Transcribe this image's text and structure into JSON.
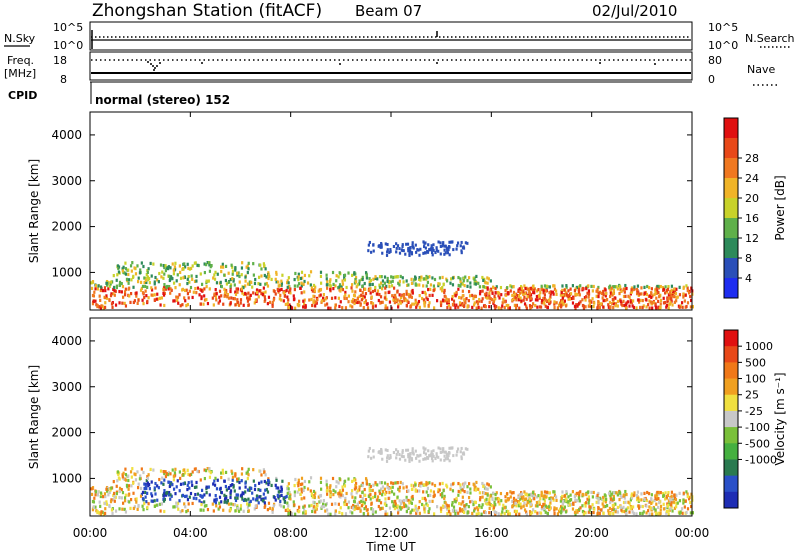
{
  "header": {
    "station": "Zhongshan Station (fitACF)",
    "beam": "Beam 07",
    "date": "02/Jul/2010"
  },
  "params": {
    "nsky_label": "N.Sky",
    "nsearch_label": "N.Search",
    "count_ticks": [
      "10^5",
      "10^0"
    ],
    "freq_label": "Freq.",
    "freq_unit": "[MHz]",
    "freq_ticks": [
      "18",
      "8"
    ],
    "nave_label": "Nave",
    "nave_ticks": [
      "80",
      "0"
    ],
    "cpid_label": "CPID",
    "cpid_text": "normal (stereo) 152"
  },
  "chart_data": [
    {
      "type": "heatmap",
      "name": "power-panel",
      "ylabel": "Slant Range [km]",
      "ylim": [
        180,
        4500
      ],
      "y_ticks": [
        1000,
        2000,
        3000,
        4000
      ],
      "xlim": [
        0,
        24
      ],
      "colorbar": {
        "label": "Power [dB]",
        "colors": [
          "#1e2df0",
          "#2a4fb8",
          "#2d8a5a",
          "#5fb04a",
          "#c8d22a",
          "#f0b428",
          "#f07820",
          "#e84818",
          "#e01010"
        ],
        "ticks": [
          "4",
          "8",
          "12",
          "16",
          "20",
          "24",
          "28"
        ]
      }
    },
    {
      "type": "heatmap",
      "name": "velocity-panel",
      "ylabel": "Slant Range [km]",
      "ylim": [
        180,
        4500
      ],
      "y_ticks": [
        1000,
        2000,
        3000,
        4000
      ],
      "xlim": [
        0,
        24
      ],
      "colorbar": {
        "label": "Velocity [m s⁻¹]",
        "colors": [
          "#1e2db4",
          "#2a50c8",
          "#2a7a50",
          "#45b040",
          "#7ac03a",
          "#c8c8c8",
          "#f0e040",
          "#f0a020",
          "#f07818",
          "#e84818",
          "#e01010"
        ],
        "ticks": [
          "1000",
          "500",
          "100",
          "25",
          "-25",
          "-100",
          "-500",
          "-1000"
        ]
      }
    }
  ],
  "xaxis": {
    "label": "Time UT",
    "ticks": [
      "00:00",
      "04:00",
      "08:00",
      "12:00",
      "16:00",
      "20:00",
      "00:00"
    ]
  }
}
